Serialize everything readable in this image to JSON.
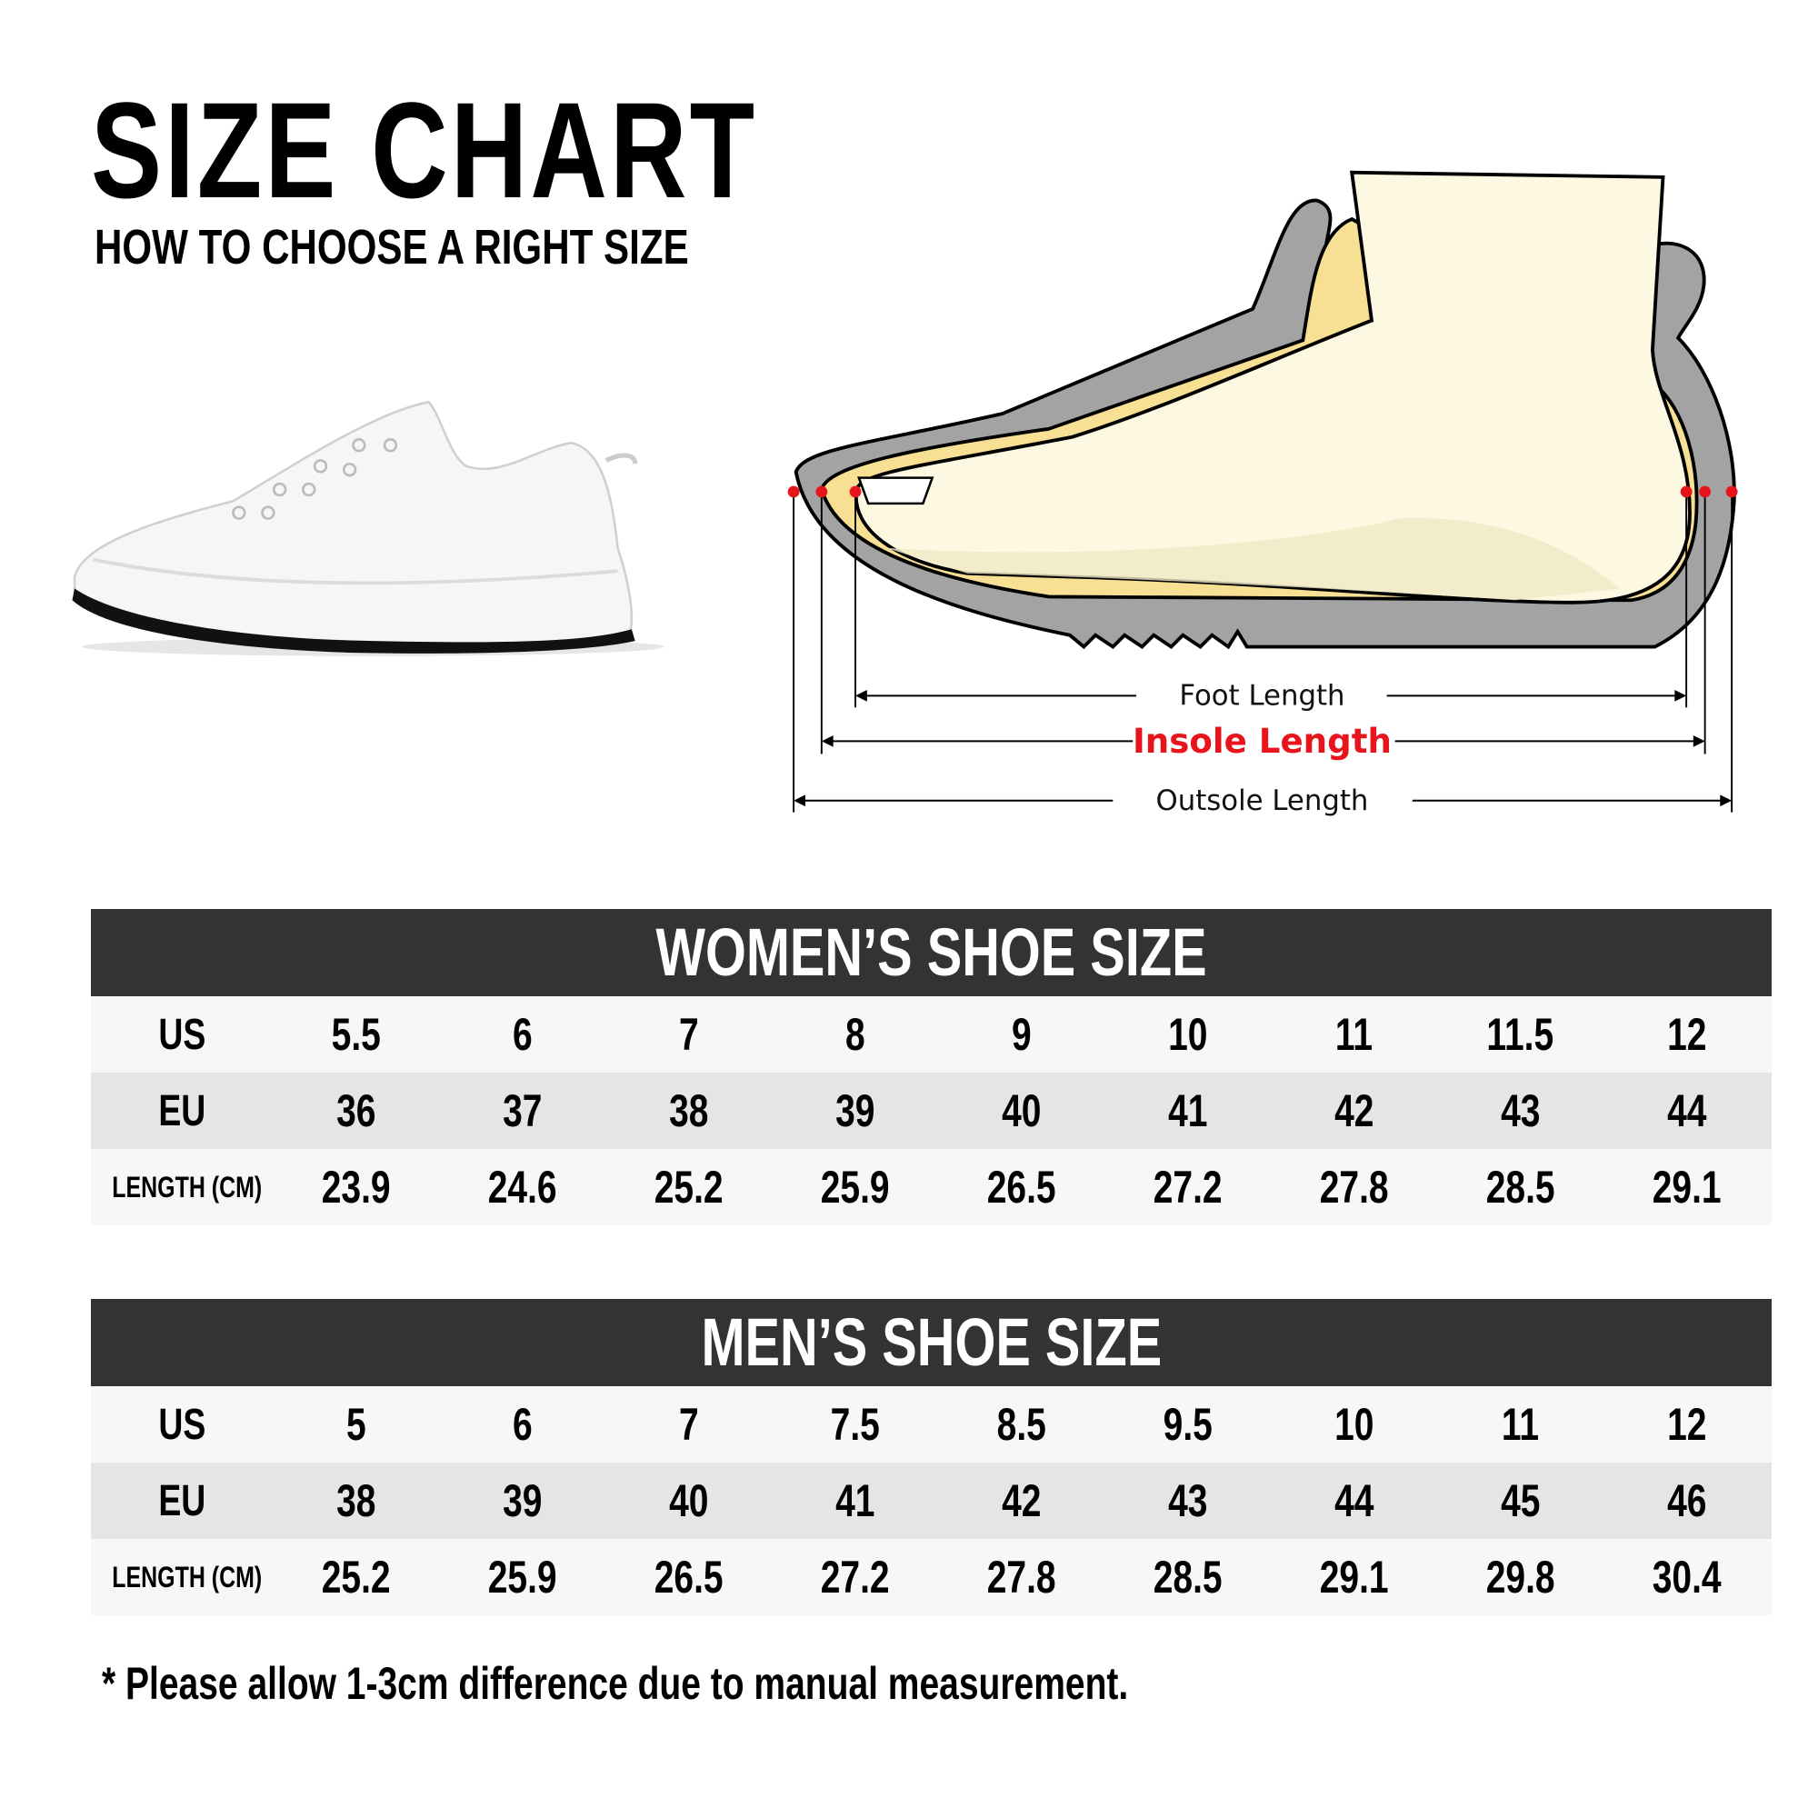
{
  "header": {
    "title": "SIZE CHART",
    "subtitle": "HOW TO CHOOSE A RIGHT SIZE"
  },
  "diagram": {
    "foot_length": "Foot Length",
    "insole_length": "Insole Length",
    "outsole_length": "Outsole Length",
    "colors": {
      "accent": "#e8141b",
      "outsole": "#a3a3a3",
      "insole": "#f7df94",
      "foot": "#fdf8e1"
    }
  },
  "tables": {
    "women": {
      "title": "WOMEN’S SHOE SIZE",
      "rows": [
        {
          "label": "US",
          "values": [
            "5.5",
            "6",
            "7",
            "8",
            "9",
            "10",
            "11",
            "11.5",
            "12"
          ]
        },
        {
          "label": "EU",
          "values": [
            "36",
            "37",
            "38",
            "39",
            "40",
            "41",
            "42",
            "43",
            "44"
          ]
        },
        {
          "label": "LENGTH (CM)",
          "values": [
            "23.9",
            "24.6",
            "25.2",
            "25.9",
            "26.5",
            "27.2",
            "27.8",
            "28.5",
            "29.1"
          ]
        }
      ]
    },
    "men": {
      "title": "MEN’S SHOE SIZE",
      "rows": [
        {
          "label": "US",
          "values": [
            "5",
            "6",
            "7",
            "7.5",
            "8.5",
            "9.5",
            "10",
            "11",
            "12"
          ]
        },
        {
          "label": "EU",
          "values": [
            "38",
            "39",
            "40",
            "41",
            "42",
            "43",
            "44",
            "45",
            "46"
          ]
        },
        {
          "label": "LENGTH (CM)",
          "values": [
            "25.2",
            "25.9",
            "26.5",
            "27.2",
            "27.8",
            "28.5",
            "29.1",
            "29.8",
            "30.4"
          ]
        }
      ]
    }
  },
  "note": "* Please allow 1-3cm difference due to manual measurement."
}
